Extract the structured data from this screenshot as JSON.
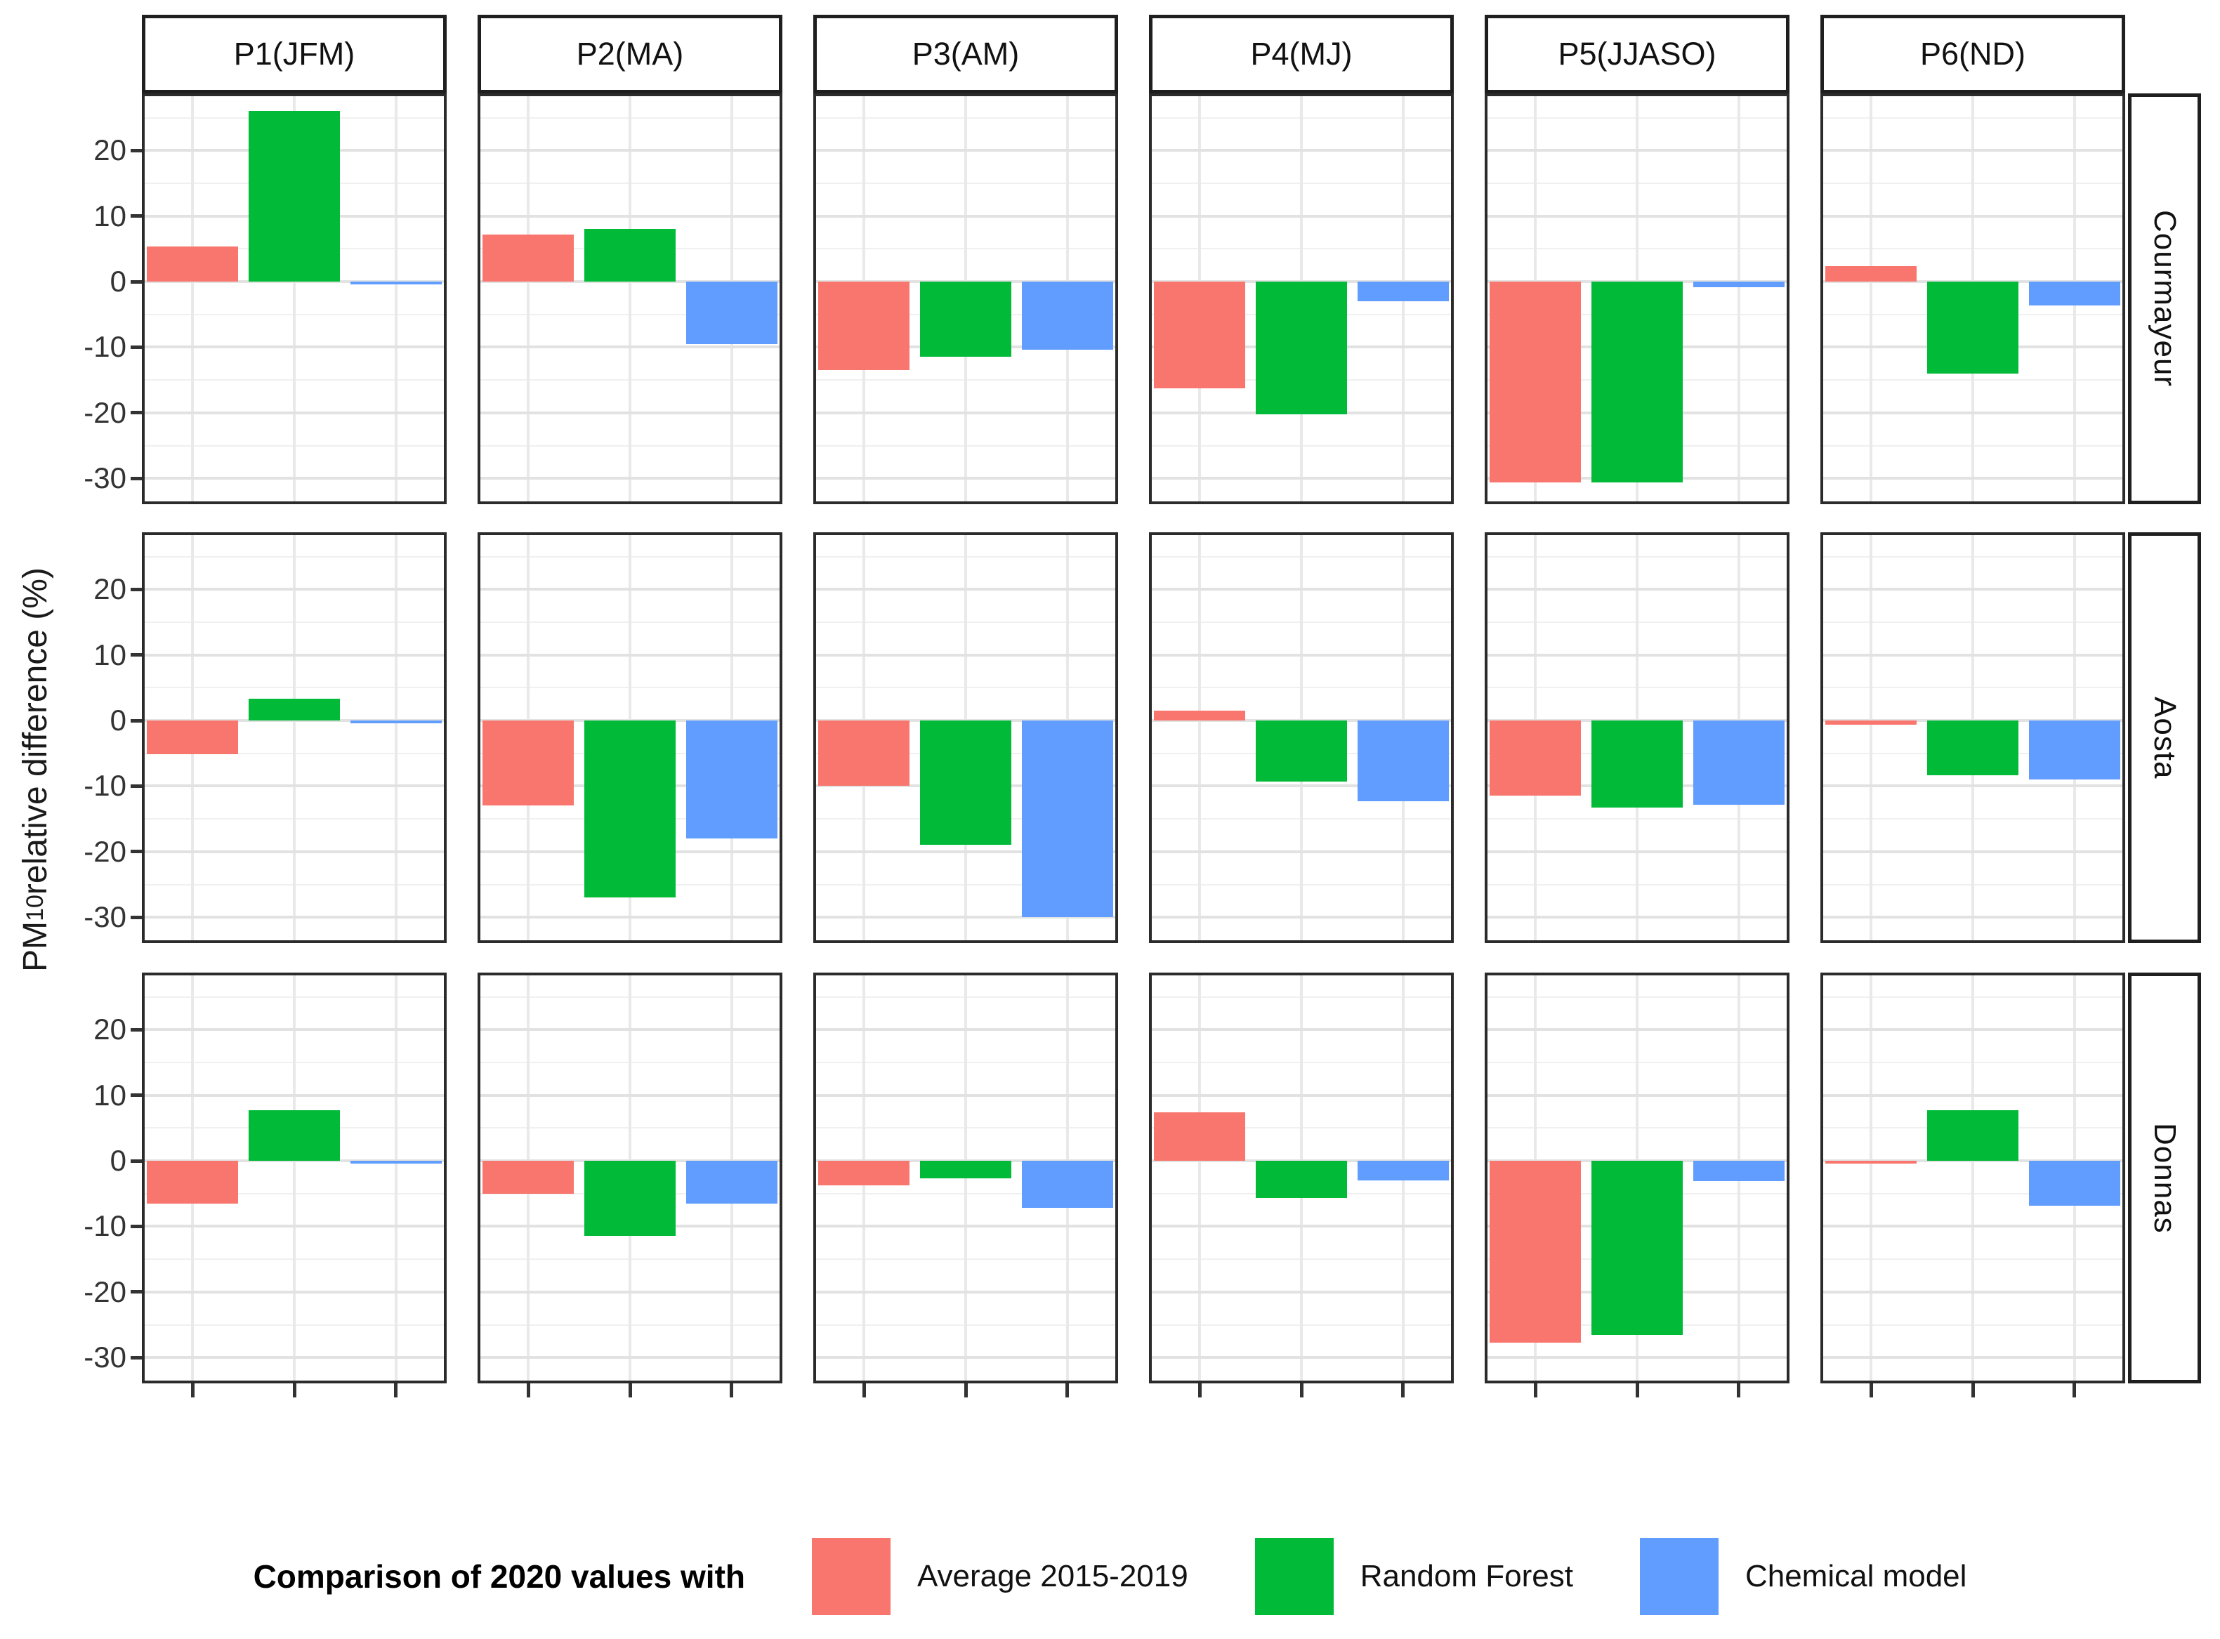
{
  "chart_data": {
    "type": "bar",
    "title": "",
    "ylabel_parts": {
      "prefix": "PM",
      "sub": "10",
      "suffix": " relative difference (%)"
    },
    "facet_cols": [
      "P1(JFM)",
      "P2(MA)",
      "P3(AM)",
      "P4(MJ)",
      "P5(JJASO)",
      "P6(ND)"
    ],
    "facet_rows": [
      "Courmayeur",
      "Aosta",
      "Donnas"
    ],
    "series": [
      "Average 2015-2019",
      "Random Forest",
      "Chemical model"
    ],
    "series_colors": [
      "#F8766D",
      "#00BA38",
      "#619CFF"
    ],
    "y_ticks": [
      20,
      10,
      0,
      -10,
      -20,
      -30
    ],
    "ylim": [
      28.7,
      -33.9
    ],
    "grid": "on",
    "legend_position": "bottom",
    "legend_title": "Comparison of 2020 values with",
    "values": {
      "Courmayeur": {
        "P1(JFM)": [
          5.4,
          26.0,
          -0.3
        ],
        "P2(MA)": [
          7.2,
          8.0,
          -9.5
        ],
        "P3(AM)": [
          -13.5,
          -11.5,
          -10.4
        ],
        "P4(MJ)": [
          -16.3,
          -20.2,
          -3.0
        ],
        "P5(JJASO)": [
          -30.6,
          -30.6,
          -0.9
        ],
        "P6(ND)": [
          2.4,
          -14.0,
          -3.6
        ]
      },
      "Aosta": {
        "P1(JFM)": [
          -5.1,
          3.3,
          -0.2
        ],
        "P2(MA)": [
          -13.0,
          -27.0,
          -18.0
        ],
        "P3(AM)": [
          -10.0,
          -19.0,
          -30.0
        ],
        "P4(MJ)": [
          1.5,
          -9.3,
          -12.3
        ],
        "P5(JJASO)": [
          -11.5,
          -13.3,
          -12.8
        ],
        "P6(ND)": [
          -0.6,
          -8.4,
          -9.0
        ]
      },
      "Donnas": {
        "P1(JFM)": [
          -6.5,
          7.7,
          -0.2
        ],
        "P2(MA)": [
          -5.0,
          -11.5,
          -6.5
        ],
        "P3(AM)": [
          -3.8,
          -2.7,
          -7.2
        ],
        "P4(MJ)": [
          7.4,
          -5.7,
          -3.0
        ],
        "P5(JJASO)": [
          -27.7,
          -26.5,
          -3.1
        ],
        "P6(ND)": [
          -0.3,
          7.7,
          -6.8
        ]
      }
    }
  }
}
